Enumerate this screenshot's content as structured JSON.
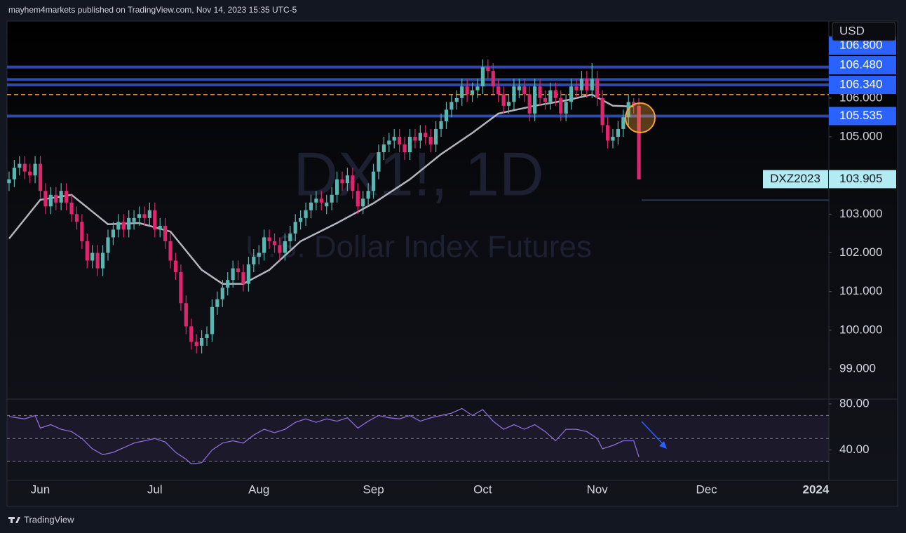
{
  "header": "mayhem4markets published on TradingView.com, Nov 14, 2023 15:35 UTC-5",
  "footer": "TradingView",
  "chart_data": {
    "type": "candlestick",
    "symbol": "DX1!, 1D",
    "subtitle": "U.S. Dollar Index Futures",
    "currency": "USD",
    "up_color": "#5cb5b0",
    "down_color": "#e0256f",
    "candles": [
      [
        103.8,
        104.1,
        103.6,
        103.9
      ],
      [
        103.9,
        104.4,
        103.7,
        104.2
      ],
      [
        104.2,
        104.5,
        104.0,
        104.3
      ],
      [
        104.3,
        104.5,
        103.9,
        104.1
      ],
      [
        104.1,
        104.3,
        103.8,
        104.0
      ],
      [
        104.0,
        104.5,
        103.8,
        104.3
      ],
      [
        104.3,
        104.5,
        103.4,
        103.6
      ],
      [
        103.6,
        103.8,
        103.0,
        103.2
      ],
      [
        103.2,
        103.7,
        103.0,
        103.5
      ],
      [
        103.5,
        103.7,
        103.1,
        103.3
      ],
      [
        103.3,
        103.8,
        103.1,
        103.6
      ],
      [
        103.6,
        103.8,
        103.1,
        103.3
      ],
      [
        103.3,
        103.5,
        102.8,
        103.0
      ],
      [
        103.0,
        103.2,
        102.6,
        102.8
      ],
      [
        102.8,
        103.0,
        102.1,
        102.3
      ],
      [
        102.3,
        102.5,
        101.6,
        101.8
      ],
      [
        101.8,
        102.2,
        101.6,
        102.0
      ],
      [
        102.0,
        102.2,
        101.4,
        101.6
      ],
      [
        101.6,
        102.2,
        101.4,
        102.0
      ],
      [
        102.0,
        102.6,
        101.8,
        102.4
      ],
      [
        102.4,
        102.8,
        102.2,
        102.6
      ],
      [
        102.6,
        103.0,
        102.4,
        102.8
      ],
      [
        102.8,
        103.0,
        102.4,
        102.6
      ],
      [
        102.6,
        103.1,
        102.4,
        102.9
      ],
      [
        102.8,
        103.1,
        102.6,
        102.9
      ],
      [
        102.9,
        103.2,
        102.7,
        103.0
      ],
      [
        103.0,
        103.2,
        102.7,
        102.9
      ],
      [
        102.9,
        103.3,
        102.7,
        103.1
      ],
      [
        103.1,
        103.3,
        102.4,
        102.6
      ],
      [
        102.6,
        102.9,
        102.4,
        102.7
      ],
      [
        102.7,
        102.9,
        102.1,
        102.3
      ],
      [
        102.3,
        102.5,
        101.6,
        101.8
      ],
      [
        101.8,
        102.0,
        101.3,
        101.5
      ],
      [
        101.5,
        101.7,
        100.5,
        100.7
      ],
      [
        100.7,
        100.9,
        99.9,
        100.1
      ],
      [
        100.1,
        100.3,
        99.5,
        99.7
      ],
      [
        99.7,
        99.9,
        99.4,
        99.6
      ],
      [
        99.6,
        100.0,
        99.4,
        99.8
      ],
      [
        99.8,
        100.1,
        99.6,
        99.9
      ],
      [
        99.9,
        100.8,
        99.7,
        100.6
      ],
      [
        100.6,
        101.0,
        100.4,
        100.8
      ],
      [
        100.8,
        101.3,
        100.6,
        101.1
      ],
      [
        101.1,
        101.5,
        100.9,
        101.3
      ],
      [
        101.3,
        101.8,
        101.1,
        101.6
      ],
      [
        101.6,
        101.8,
        101.3,
        101.5
      ],
      [
        101.5,
        101.7,
        101.0,
        101.2
      ],
      [
        101.2,
        101.9,
        101.0,
        101.7
      ],
      [
        101.7,
        102.1,
        101.5,
        101.9
      ],
      [
        101.9,
        102.2,
        101.7,
        102.0
      ],
      [
        102.0,
        102.6,
        101.8,
        102.4
      ],
      [
        102.4,
        102.6,
        102.1,
        102.3
      ],
      [
        102.3,
        102.5,
        102.0,
        102.2
      ],
      [
        102.2,
        102.4,
        101.8,
        102.0
      ],
      [
        102.0,
        102.5,
        101.8,
        102.3
      ],
      [
        102.3,
        102.7,
        102.1,
        102.5
      ],
      [
        102.5,
        103.0,
        102.3,
        102.8
      ],
      [
        102.8,
        103.1,
        102.6,
        102.9
      ],
      [
        102.9,
        103.3,
        102.7,
        103.1
      ],
      [
        103.1,
        103.5,
        102.9,
        103.3
      ],
      [
        103.3,
        103.6,
        103.1,
        103.4
      ],
      [
        103.4,
        103.6,
        103.1,
        103.3
      ],
      [
        103.2,
        103.5,
        103.0,
        103.3
      ],
      [
        103.3,
        103.7,
        103.1,
        103.5
      ],
      [
        103.5,
        104.1,
        103.3,
        103.9
      ],
      [
        103.9,
        104.1,
        103.6,
        103.8
      ],
      [
        103.8,
        104.2,
        103.6,
        104.0
      ],
      [
        104.0,
        104.2,
        103.4,
        103.6
      ],
      [
        103.6,
        103.8,
        103.0,
        103.2
      ],
      [
        103.2,
        103.6,
        103.0,
        103.4
      ],
      [
        103.4,
        103.8,
        103.2,
        103.6
      ],
      [
        103.6,
        104.3,
        103.4,
        104.1
      ],
      [
        104.1,
        104.8,
        103.9,
        104.6
      ],
      [
        104.6,
        105.0,
        104.4,
        104.8
      ],
      [
        104.8,
        105.1,
        104.6,
        104.9
      ],
      [
        104.9,
        105.2,
        104.7,
        105.0
      ],
      [
        105.0,
        105.2,
        104.6,
        104.8
      ],
      [
        104.8,
        105.0,
        104.4,
        104.6
      ],
      [
        104.6,
        105.2,
        104.4,
        105.0
      ],
      [
        105.0,
        105.2,
        104.7,
        104.9
      ],
      [
        104.9,
        105.3,
        104.7,
        105.1
      ],
      [
        105.1,
        105.3,
        104.8,
        105.0
      ],
      [
        105.0,
        105.2,
        104.6,
        104.8
      ],
      [
        104.8,
        105.4,
        104.6,
        105.2
      ],
      [
        105.2,
        105.6,
        105.0,
        105.4
      ],
      [
        105.4,
        105.9,
        105.2,
        105.7
      ],
      [
        105.7,
        106.1,
        105.5,
        105.9
      ],
      [
        105.9,
        106.2,
        105.7,
        106.0
      ],
      [
        106.0,
        106.5,
        105.8,
        106.3
      ],
      [
        106.3,
        106.5,
        105.9,
        106.1
      ],
      [
        106.1,
        106.4,
        105.9,
        106.2
      ],
      [
        106.2,
        106.5,
        106.0,
        106.3
      ],
      [
        106.3,
        107.0,
        106.1,
        106.8
      ],
      [
        106.8,
        107.0,
        106.5,
        106.7
      ],
      [
        106.7,
        106.9,
        106.1,
        106.3
      ],
      [
        106.3,
        106.5,
        105.9,
        106.1
      ],
      [
        106.1,
        106.3,
        105.6,
        105.8
      ],
      [
        105.8,
        106.1,
        105.6,
        105.9
      ],
      [
        105.9,
        106.5,
        105.7,
        106.3
      ],
      [
        106.2,
        106.5,
        106.0,
        106.3
      ],
      [
        106.3,
        106.5,
        105.9,
        106.1
      ],
      [
        106.1,
        106.3,
        105.4,
        105.6
      ],
      [
        105.6,
        106.5,
        105.4,
        106.3
      ],
      [
        106.3,
        106.5,
        105.8,
        106.0
      ],
      [
        106.0,
        106.2,
        105.7,
        105.9
      ],
      [
        105.9,
        106.4,
        105.7,
        106.2
      ],
      [
        106.2,
        106.4,
        105.8,
        106.0
      ],
      [
        106.0,
        106.2,
        105.4,
        105.6
      ],
      [
        105.6,
        106.1,
        105.4,
        105.9
      ],
      [
        105.9,
        106.5,
        105.7,
        106.3
      ],
      [
        106.3,
        106.5,
        106.0,
        106.2
      ],
      [
        106.2,
        106.7,
        106.0,
        106.5
      ],
      [
        106.5,
        106.7,
        106.0,
        106.2
      ],
      [
        106.2,
        106.9,
        106.0,
        106.5
      ],
      [
        106.5,
        106.7,
        105.8,
        106.0
      ],
      [
        106.0,
        106.2,
        105.1,
        105.3
      ],
      [
        105.3,
        105.5,
        104.7,
        104.9
      ],
      [
        104.9,
        105.2,
        104.7,
        105.0
      ],
      [
        105.0,
        105.4,
        104.8,
        105.2
      ],
      [
        105.2,
        105.7,
        105.0,
        105.5
      ],
      [
        105.5,
        106.1,
        105.3,
        105.9
      ],
      [
        105.9,
        106.0,
        105.6,
        105.8
      ],
      [
        105.8,
        106.0,
        103.9,
        103.9
      ]
    ],
    "ma": {
      "color": "#b2b5be",
      "x": [
        0,
        6,
        12,
        19,
        25,
        31,
        37,
        41,
        45,
        50,
        56,
        63,
        70,
        77,
        83,
        89,
        94,
        101,
        107,
        112,
        116,
        120
      ],
      "values": [
        102.37,
        103.37,
        103.5,
        102.74,
        102.77,
        102.55,
        101.56,
        101.2,
        101.2,
        101.56,
        102.3,
        102.77,
        103.28,
        103.9,
        104.55,
        105.1,
        105.6,
        105.8,
        105.94,
        106.09,
        105.8,
        105.78
      ]
    },
    "levels": [
      {
        "value": 106.8,
        "label": "106.800"
      },
      {
        "value": 106.48,
        "label": "106.480"
      },
      {
        "value": 106.34,
        "label": "106.340"
      },
      {
        "value": 105.535,
        "label": "105.535"
      }
    ],
    "level_color": "#2e4aa8",
    "level_label_color": "#2962ff",
    "dashed_level": 106.09,
    "dashed_color": "#f5a13b",
    "last_price": {
      "value": 103.905,
      "label": "103.905",
      "contract": "DXZ2023",
      "color": "#b2ebf2"
    },
    "xlim": [
      -0.4,
      157.5
    ],
    "xticks": [
      {
        "value": 6,
        "label": "Jun"
      },
      {
        "value": 28,
        "label": "Jul"
      },
      {
        "value": 48,
        "label": "Aug"
      },
      {
        "value": 70,
        "label": "Sep"
      },
      {
        "value": 91,
        "label": "Oct"
      },
      {
        "value": 113,
        "label": "Nov"
      },
      {
        "value": 134,
        "label": "Dec"
      },
      {
        "value": 155,
        "label": "2024"
      }
    ],
    "ylim": [
      98.24,
      107.99
    ],
    "yticks": [
      {
        "value": 99,
        "label": "99.000"
      },
      {
        "value": 100,
        "label": "100.000"
      },
      {
        "value": 101,
        "label": "101.000"
      },
      {
        "value": 102,
        "label": "102.000"
      },
      {
        "value": 103,
        "label": "103.000"
      },
      {
        "value": 105,
        "label": "105.000"
      },
      {
        "value": 106,
        "label": "106.000"
      }
    ],
    "rsi": {
      "color": "#8c6cd8",
      "x": [
        0,
        3,
        5,
        6,
        8,
        10,
        12,
        14,
        16,
        18,
        20,
        22,
        24,
        26,
        28,
        30,
        32,
        34,
        35,
        37,
        39,
        41,
        43,
        45,
        47,
        49,
        51,
        53,
        55,
        57,
        59,
        61,
        63,
        65,
        67,
        69,
        71,
        73,
        75,
        77,
        79,
        81,
        83,
        85,
        87,
        89,
        91,
        93,
        95,
        97,
        99,
        101,
        103,
        105,
        107,
        109,
        111,
        113,
        114,
        116,
        118,
        120,
        121
      ],
      "values": [
        69,
        67,
        70,
        59,
        62,
        58,
        56,
        50,
        41,
        36,
        38,
        42,
        46,
        48,
        50,
        47,
        38,
        32,
        28,
        29,
        40,
        46,
        48,
        46,
        53,
        58,
        55,
        58,
        64,
        67,
        64,
        67,
        65,
        68,
        59,
        65,
        70,
        68,
        67,
        70,
        65,
        68,
        70,
        72,
        76,
        70,
        75,
        65,
        58,
        62,
        58,
        62,
        56,
        48,
        58,
        58,
        56,
        50,
        41,
        44,
        48,
        48,
        34
      ],
      "ylim": [
        16.7,
        83.6
      ],
      "yticks": [
        {
          "value": 80,
          "label": "80.00"
        },
        {
          "value": 40,
          "label": "40.00"
        }
      ],
      "levels": [
        70,
        50,
        30
      ]
    }
  }
}
